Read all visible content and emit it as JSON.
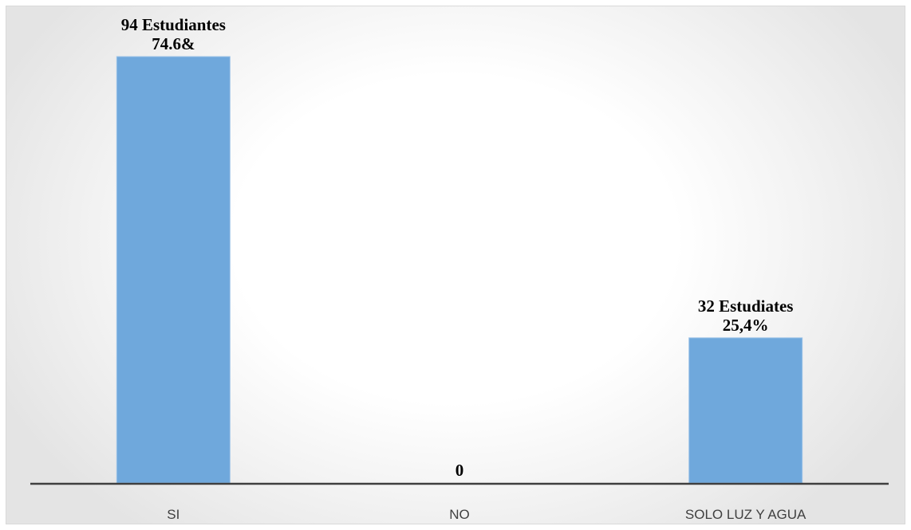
{
  "chart_data": {
    "type": "bar",
    "categories": [
      "SI",
      "NO",
      "SOLO LUZ Y AGUA"
    ],
    "values": [
      94,
      0,
      32
    ],
    "data_labels": [
      [
        "94 Estudiantes",
        "74.6&"
      ],
      [
        "0"
      ],
      [
        "32 Estudiates",
        "25,4%"
      ]
    ],
    "title": "",
    "xlabel": "",
    "ylabel": "",
    "ylim": [
      0,
      94
    ],
    "grid": false,
    "legend": "none",
    "bar_color": "#6fa8dc",
    "bar_edge_color": "#9ec4e8",
    "axis_color": "#3f3f3f"
  }
}
